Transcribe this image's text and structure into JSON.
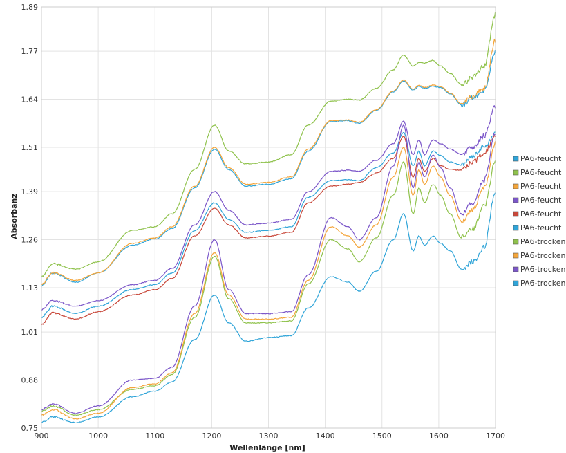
{
  "chart_data": {
    "type": "line",
    "title": "",
    "xlabel": "Wellenlänge [nm]",
    "ylabel": "Absorbanz",
    "xlim": [
      900,
      1700
    ],
    "ylim": [
      0.75,
      1.89
    ],
    "x_ticks": [
      900,
      1000,
      1100,
      1200,
      1300,
      1400,
      1500,
      1600,
      1700
    ],
    "x_tick_labels": [
      "900",
      "1000",
      "1100",
      "1200",
      "1300",
      "1400",
      "1500",
      "1600",
      "1700"
    ],
    "y_ticks": [
      0.75,
      0.88,
      1.01,
      1.13,
      1.26,
      1.39,
      1.51,
      1.64,
      1.77,
      1.89
    ],
    "y_tick_labels": [
      "0.75",
      "0.88",
      "1.01",
      "1.13",
      "1.26",
      "1.39",
      "1.51",
      "1.64",
      "1.77",
      "1.89"
    ],
    "grid": true,
    "legend_position": "right",
    "x": [
      900,
      920,
      960,
      1000,
      1060,
      1100,
      1130,
      1170,
      1205,
      1230,
      1260,
      1300,
      1340,
      1370,
      1410,
      1440,
      1460,
      1490,
      1520,
      1538,
      1555,
      1565,
      1575,
      1590,
      1603,
      1620,
      1640,
      1660,
      1680,
      1700
    ],
    "series": [
      {
        "name": "PA6-feucht",
        "color": "#2fa4d8",
        "values": [
          1.135,
          1.17,
          1.145,
          1.17,
          1.245,
          1.262,
          1.29,
          1.4,
          1.505,
          1.45,
          1.405,
          1.41,
          1.425,
          1.5,
          1.58,
          1.582,
          1.575,
          1.61,
          1.66,
          1.69,
          1.665,
          1.675,
          1.67,
          1.675,
          1.672,
          1.655,
          1.625,
          1.645,
          1.665,
          1.77
        ]
      },
      {
        "name": "PA6-feucht",
        "color": "#8fc24c",
        "values": [
          1.16,
          1.195,
          1.18,
          1.2,
          1.285,
          1.295,
          1.33,
          1.45,
          1.57,
          1.5,
          1.465,
          1.47,
          1.49,
          1.57,
          1.635,
          1.64,
          1.638,
          1.67,
          1.72,
          1.76,
          1.73,
          1.74,
          1.738,
          1.745,
          1.73,
          1.71,
          1.68,
          1.7,
          1.73,
          1.87
        ]
      },
      {
        "name": "PA6-feucht",
        "color": "#f4a53a",
        "values": [
          1.14,
          1.17,
          1.15,
          1.17,
          1.25,
          1.265,
          1.295,
          1.405,
          1.51,
          1.455,
          1.41,
          1.415,
          1.43,
          1.505,
          1.582,
          1.584,
          1.578,
          1.612,
          1.662,
          1.692,
          1.668,
          1.678,
          1.672,
          1.678,
          1.675,
          1.657,
          1.628,
          1.648,
          1.668,
          1.8
        ]
      },
      {
        "name": "PA6-feucht",
        "color": "#7b56c9",
        "values": [
          1.07,
          1.095,
          1.08,
          1.095,
          1.138,
          1.15,
          1.182,
          1.3,
          1.39,
          1.34,
          1.3,
          1.305,
          1.315,
          1.39,
          1.445,
          1.448,
          1.445,
          1.475,
          1.52,
          1.58,
          1.49,
          1.53,
          1.49,
          1.53,
          1.52,
          1.505,
          1.49,
          1.51,
          1.54,
          1.62
        ]
      },
      {
        "name": "PA6-feucht",
        "color": "#c8483a",
        "values": [
          1.03,
          1.062,
          1.045,
          1.065,
          1.11,
          1.125,
          1.155,
          1.27,
          1.345,
          1.3,
          1.265,
          1.27,
          1.28,
          1.36,
          1.405,
          1.41,
          1.415,
          1.44,
          1.48,
          1.54,
          1.43,
          1.48,
          1.445,
          1.48,
          1.46,
          1.45,
          1.448,
          1.47,
          1.495,
          1.54
        ]
      },
      {
        "name": "PA6-feucht",
        "color": "#2fa4d8",
        "values": [
          1.05,
          1.08,
          1.06,
          1.08,
          1.125,
          1.138,
          1.17,
          1.285,
          1.36,
          1.315,
          1.28,
          1.285,
          1.295,
          1.375,
          1.42,
          1.422,
          1.42,
          1.455,
          1.495,
          1.55,
          1.46,
          1.5,
          1.46,
          1.5,
          1.488,
          1.47,
          1.462,
          1.485,
          1.51,
          1.55
        ]
      },
      {
        "name": "PA6-trocken",
        "color": "#8fc24c",
        "values": [
          0.795,
          0.81,
          0.785,
          0.8,
          0.855,
          0.865,
          0.895,
          1.05,
          1.215,
          1.1,
          1.035,
          1.035,
          1.04,
          1.14,
          1.26,
          1.235,
          1.2,
          1.265,
          1.38,
          1.47,
          1.33,
          1.4,
          1.36,
          1.41,
          1.38,
          1.33,
          1.265,
          1.29,
          1.35,
          1.47
        ]
      },
      {
        "name": "PA6-trocken",
        "color": "#f4a53a",
        "values": [
          0.785,
          0.8,
          0.775,
          0.79,
          0.86,
          0.87,
          0.9,
          1.06,
          1.225,
          1.11,
          1.045,
          1.045,
          1.05,
          1.15,
          1.295,
          1.27,
          1.24,
          1.3,
          1.43,
          1.51,
          1.38,
          1.45,
          1.41,
          1.46,
          1.43,
          1.38,
          1.31,
          1.34,
          1.4,
          1.52
        ]
      },
      {
        "name": "PA6-trocken",
        "color": "#7b56c9",
        "values": [
          0.8,
          0.815,
          0.79,
          0.81,
          0.88,
          0.885,
          0.915,
          1.08,
          1.26,
          1.125,
          1.06,
          1.06,
          1.065,
          1.165,
          1.32,
          1.295,
          1.26,
          1.32,
          1.46,
          1.57,
          1.4,
          1.47,
          1.43,
          1.49,
          1.455,
          1.4,
          1.33,
          1.36,
          1.42,
          1.55
        ]
      },
      {
        "name": "PA6-trocken",
        "color": "#2fa4d8",
        "values": [
          0.765,
          0.78,
          0.765,
          0.78,
          0.835,
          0.85,
          0.875,
          0.99,
          1.11,
          1.035,
          0.985,
          0.995,
          1.0,
          1.075,
          1.16,
          1.145,
          1.12,
          1.175,
          1.26,
          1.33,
          1.23,
          1.27,
          1.245,
          1.27,
          1.25,
          1.23,
          1.18,
          1.2,
          1.24,
          1.39
        ]
      }
    ]
  }
}
